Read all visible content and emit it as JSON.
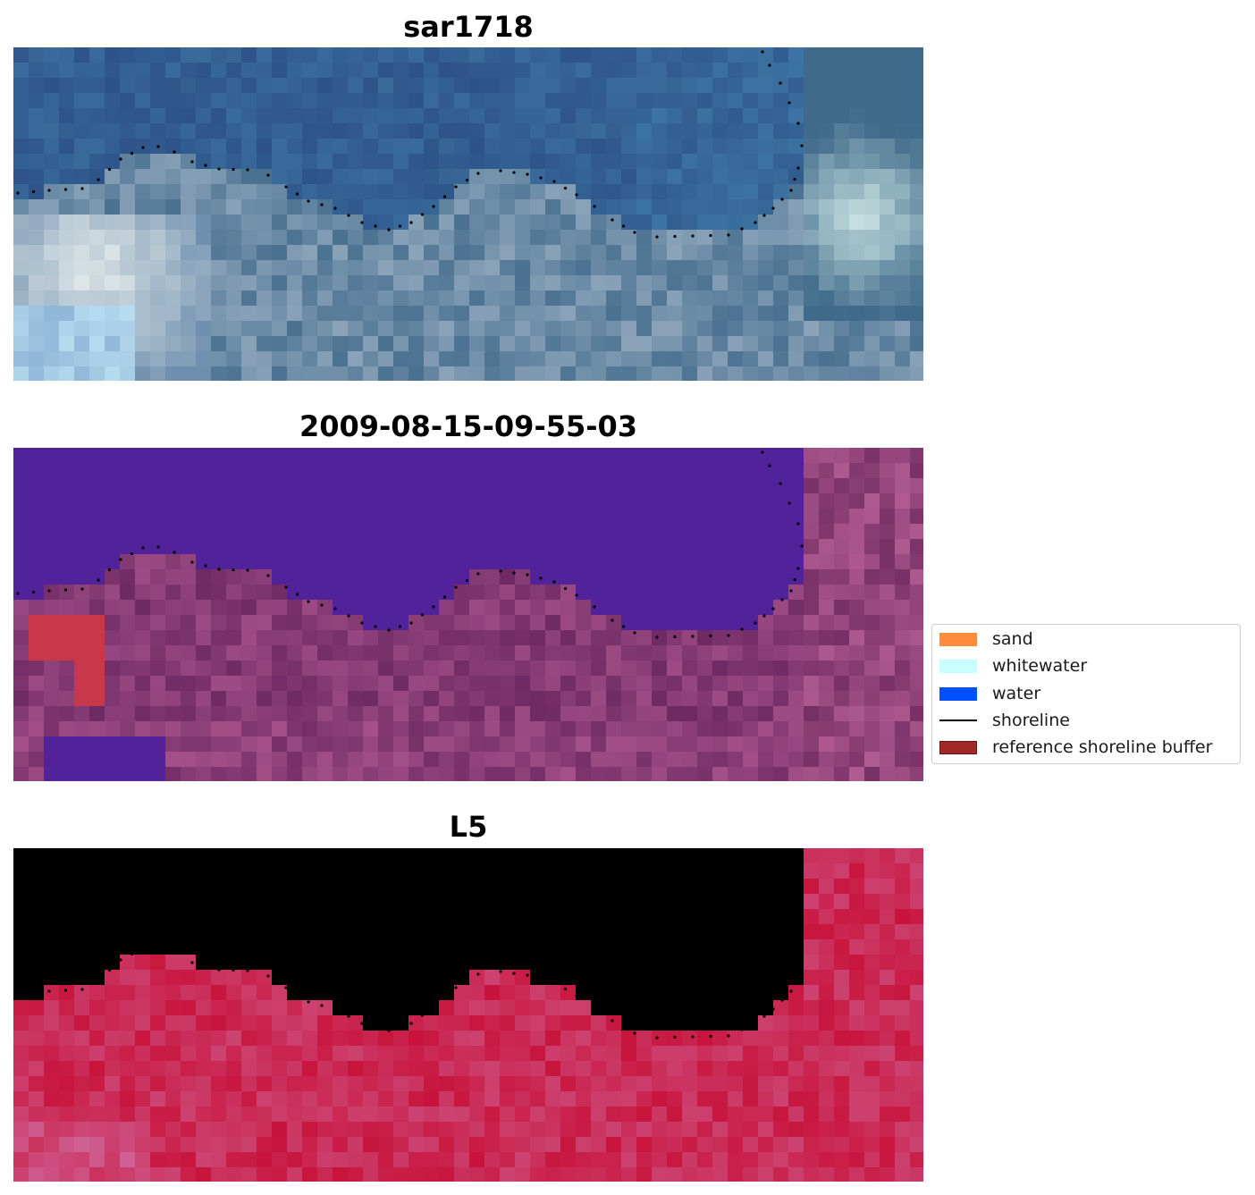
{
  "panels": [
    {
      "title": "sar1718",
      "kind": "rgb"
    },
    {
      "title": "2009-08-15-09-55-03",
      "kind": "classified"
    },
    {
      "title": "L5",
      "kind": "index"
    }
  ],
  "legend": {
    "items": [
      {
        "label": "sand",
        "color": "#ff8c3a",
        "type": "patch"
      },
      {
        "label": "whitewater",
        "color": "#c8ffff",
        "type": "patch"
      },
      {
        "label": "water",
        "color": "#0050ff",
        "type": "patch"
      },
      {
        "label": "shoreline",
        "color": "#000000",
        "type": "line"
      },
      {
        "label": "reference shoreline buffer",
        "color": "#a02828",
        "type": "patch"
      }
    ]
  },
  "colors": {
    "rgb_water": "#2f5a8c",
    "classified_water": "#51229a",
    "classified_land": "#7a2e6e",
    "classified_buffer": "#c8384a",
    "index_low": "#6a10a0",
    "index_high": "#c8143c",
    "shoreline": "#000000"
  }
}
